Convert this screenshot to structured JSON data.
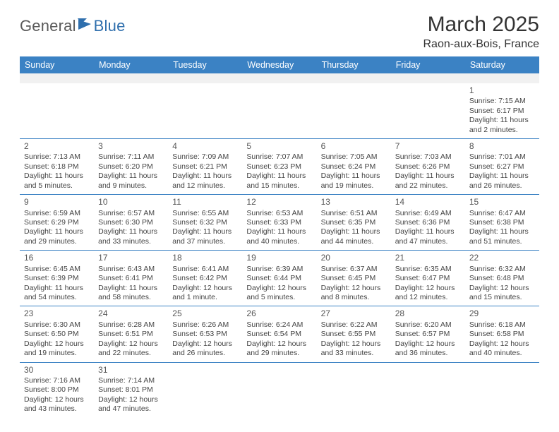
{
  "brand": {
    "part1": "General",
    "part2": "Blue"
  },
  "title": "March 2025",
  "subtitle": "Raon-aux-Bois, France",
  "colors": {
    "header_bg": "#3b82c4",
    "header_text": "#ffffff",
    "border": "#3b82c4",
    "brand_gray": "#5a5a5a",
    "brand_blue": "#2f6fad",
    "blank_row_bg": "#f1f1f1"
  },
  "weekday_headers": [
    "Sunday",
    "Monday",
    "Tuesday",
    "Wednesday",
    "Thursday",
    "Friday",
    "Saturday"
  ],
  "days": {
    "1": {
      "sunrise": "7:15 AM",
      "sunset": "6:17 PM",
      "daylight": "11 hours and 2 minutes."
    },
    "2": {
      "sunrise": "7:13 AM",
      "sunset": "6:18 PM",
      "daylight": "11 hours and 5 minutes."
    },
    "3": {
      "sunrise": "7:11 AM",
      "sunset": "6:20 PM",
      "daylight": "11 hours and 9 minutes."
    },
    "4": {
      "sunrise": "7:09 AM",
      "sunset": "6:21 PM",
      "daylight": "11 hours and 12 minutes."
    },
    "5": {
      "sunrise": "7:07 AM",
      "sunset": "6:23 PM",
      "daylight": "11 hours and 15 minutes."
    },
    "6": {
      "sunrise": "7:05 AM",
      "sunset": "6:24 PM",
      "daylight": "11 hours and 19 minutes."
    },
    "7": {
      "sunrise": "7:03 AM",
      "sunset": "6:26 PM",
      "daylight": "11 hours and 22 minutes."
    },
    "8": {
      "sunrise": "7:01 AM",
      "sunset": "6:27 PM",
      "daylight": "11 hours and 26 minutes."
    },
    "9": {
      "sunrise": "6:59 AM",
      "sunset": "6:29 PM",
      "daylight": "11 hours and 29 minutes."
    },
    "10": {
      "sunrise": "6:57 AM",
      "sunset": "6:30 PM",
      "daylight": "11 hours and 33 minutes."
    },
    "11": {
      "sunrise": "6:55 AM",
      "sunset": "6:32 PM",
      "daylight": "11 hours and 37 minutes."
    },
    "12": {
      "sunrise": "6:53 AM",
      "sunset": "6:33 PM",
      "daylight": "11 hours and 40 minutes."
    },
    "13": {
      "sunrise": "6:51 AM",
      "sunset": "6:35 PM",
      "daylight": "11 hours and 44 minutes."
    },
    "14": {
      "sunrise": "6:49 AM",
      "sunset": "6:36 PM",
      "daylight": "11 hours and 47 minutes."
    },
    "15": {
      "sunrise": "6:47 AM",
      "sunset": "6:38 PM",
      "daylight": "11 hours and 51 minutes."
    },
    "16": {
      "sunrise": "6:45 AM",
      "sunset": "6:39 PM",
      "daylight": "11 hours and 54 minutes."
    },
    "17": {
      "sunrise": "6:43 AM",
      "sunset": "6:41 PM",
      "daylight": "11 hours and 58 minutes."
    },
    "18": {
      "sunrise": "6:41 AM",
      "sunset": "6:42 PM",
      "daylight": "12 hours and 1 minute."
    },
    "19": {
      "sunrise": "6:39 AM",
      "sunset": "6:44 PM",
      "daylight": "12 hours and 5 minutes."
    },
    "20": {
      "sunrise": "6:37 AM",
      "sunset": "6:45 PM",
      "daylight": "12 hours and 8 minutes."
    },
    "21": {
      "sunrise": "6:35 AM",
      "sunset": "6:47 PM",
      "daylight": "12 hours and 12 minutes."
    },
    "22": {
      "sunrise": "6:32 AM",
      "sunset": "6:48 PM",
      "daylight": "12 hours and 15 minutes."
    },
    "23": {
      "sunrise": "6:30 AM",
      "sunset": "6:50 PM",
      "daylight": "12 hours and 19 minutes."
    },
    "24": {
      "sunrise": "6:28 AM",
      "sunset": "6:51 PM",
      "daylight": "12 hours and 22 minutes."
    },
    "25": {
      "sunrise": "6:26 AM",
      "sunset": "6:53 PM",
      "daylight": "12 hours and 26 minutes."
    },
    "26": {
      "sunrise": "6:24 AM",
      "sunset": "6:54 PM",
      "daylight": "12 hours and 29 minutes."
    },
    "27": {
      "sunrise": "6:22 AM",
      "sunset": "6:55 PM",
      "daylight": "12 hours and 33 minutes."
    },
    "28": {
      "sunrise": "6:20 AM",
      "sunset": "6:57 PM",
      "daylight": "12 hours and 36 minutes."
    },
    "29": {
      "sunrise": "6:18 AM",
      "sunset": "6:58 PM",
      "daylight": "12 hours and 40 minutes."
    },
    "30": {
      "sunrise": "7:16 AM",
      "sunset": "8:00 PM",
      "daylight": "12 hours and 43 minutes."
    },
    "31": {
      "sunrise": "7:14 AM",
      "sunset": "8:01 PM",
      "daylight": "12 hours and 47 minutes."
    }
  },
  "labels": {
    "sunrise": "Sunrise:",
    "sunset": "Sunset:",
    "daylight": "Daylight:"
  },
  "grid": [
    [
      null,
      null,
      null,
      null,
      null,
      null,
      "1"
    ],
    [
      "2",
      "3",
      "4",
      "5",
      "6",
      "7",
      "8"
    ],
    [
      "9",
      "10",
      "11",
      "12",
      "13",
      "14",
      "15"
    ],
    [
      "16",
      "17",
      "18",
      "19",
      "20",
      "21",
      "22"
    ],
    [
      "23",
      "24",
      "25",
      "26",
      "27",
      "28",
      "29"
    ],
    [
      "30",
      "31",
      null,
      null,
      null,
      null,
      null
    ]
  ]
}
